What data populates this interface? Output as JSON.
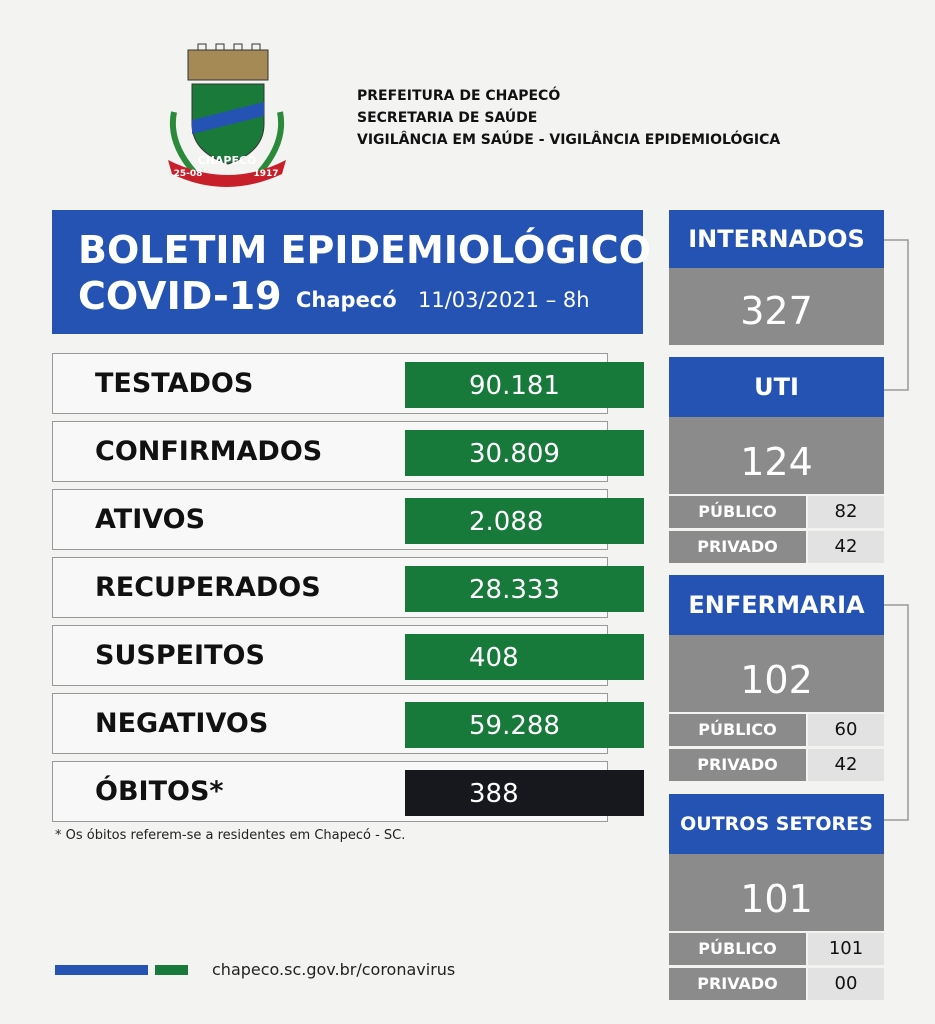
{
  "header": {
    "lines": [
      "PREFEITURA DE CHAPECÓ",
      "SECRETARIA DE SAÚDE",
      "VIGILÂNCIA EM SAÚDE - VIGILÂNCIA EPIDEMIOLÓGICA"
    ],
    "logo": {
      "name": "CHAPECÓ",
      "day": "25-08",
      "year": "1917"
    }
  },
  "title": {
    "line1": "BOLETIM EPIDEMIOLÓGICO",
    "line2": "COVID-19",
    "city": "Chapecó",
    "date": "11/03/2021 – 8h"
  },
  "stats": [
    {
      "label": "TESTADOS",
      "value": "90.181"
    },
    {
      "label": "CONFIRMADOS",
      "value": "30.809"
    },
    {
      "label": "ATIVOS",
      "value": "2.088"
    },
    {
      "label": "RECUPERADOS",
      "value": "28.333"
    },
    {
      "label": "SUSPEITOS",
      "value": "408"
    },
    {
      "label": "NEGATIVOS",
      "value": "59.288"
    },
    {
      "label": "ÓBITOS*",
      "value": "388"
    }
  ],
  "footnote": "* Os óbitos referem-se a residentes em Chapecó - SC.",
  "sectors": [
    {
      "name": "INTERNADOS",
      "total": "327"
    },
    {
      "name": "UTI",
      "total": "124",
      "breakdown": [
        {
          "label": "PÚBLICO",
          "value": "82"
        },
        {
          "label": "PRIVADO",
          "value": "42"
        }
      ]
    },
    {
      "name": "ENFERMARIA",
      "total": "102",
      "breakdown": [
        {
          "label": "PÚBLICO",
          "value": "60"
        },
        {
          "label": "PRIVADO",
          "value": "42"
        }
      ]
    },
    {
      "name": "OUTROS SETORES",
      "total": "101",
      "breakdown": [
        {
          "label": "PÚBLICO",
          "value": "101"
        },
        {
          "label": "PRIVADO",
          "value": "00"
        }
      ]
    }
  ],
  "footer": {
    "url": "chapeco.sc.gov.br/coronavirus"
  }
}
